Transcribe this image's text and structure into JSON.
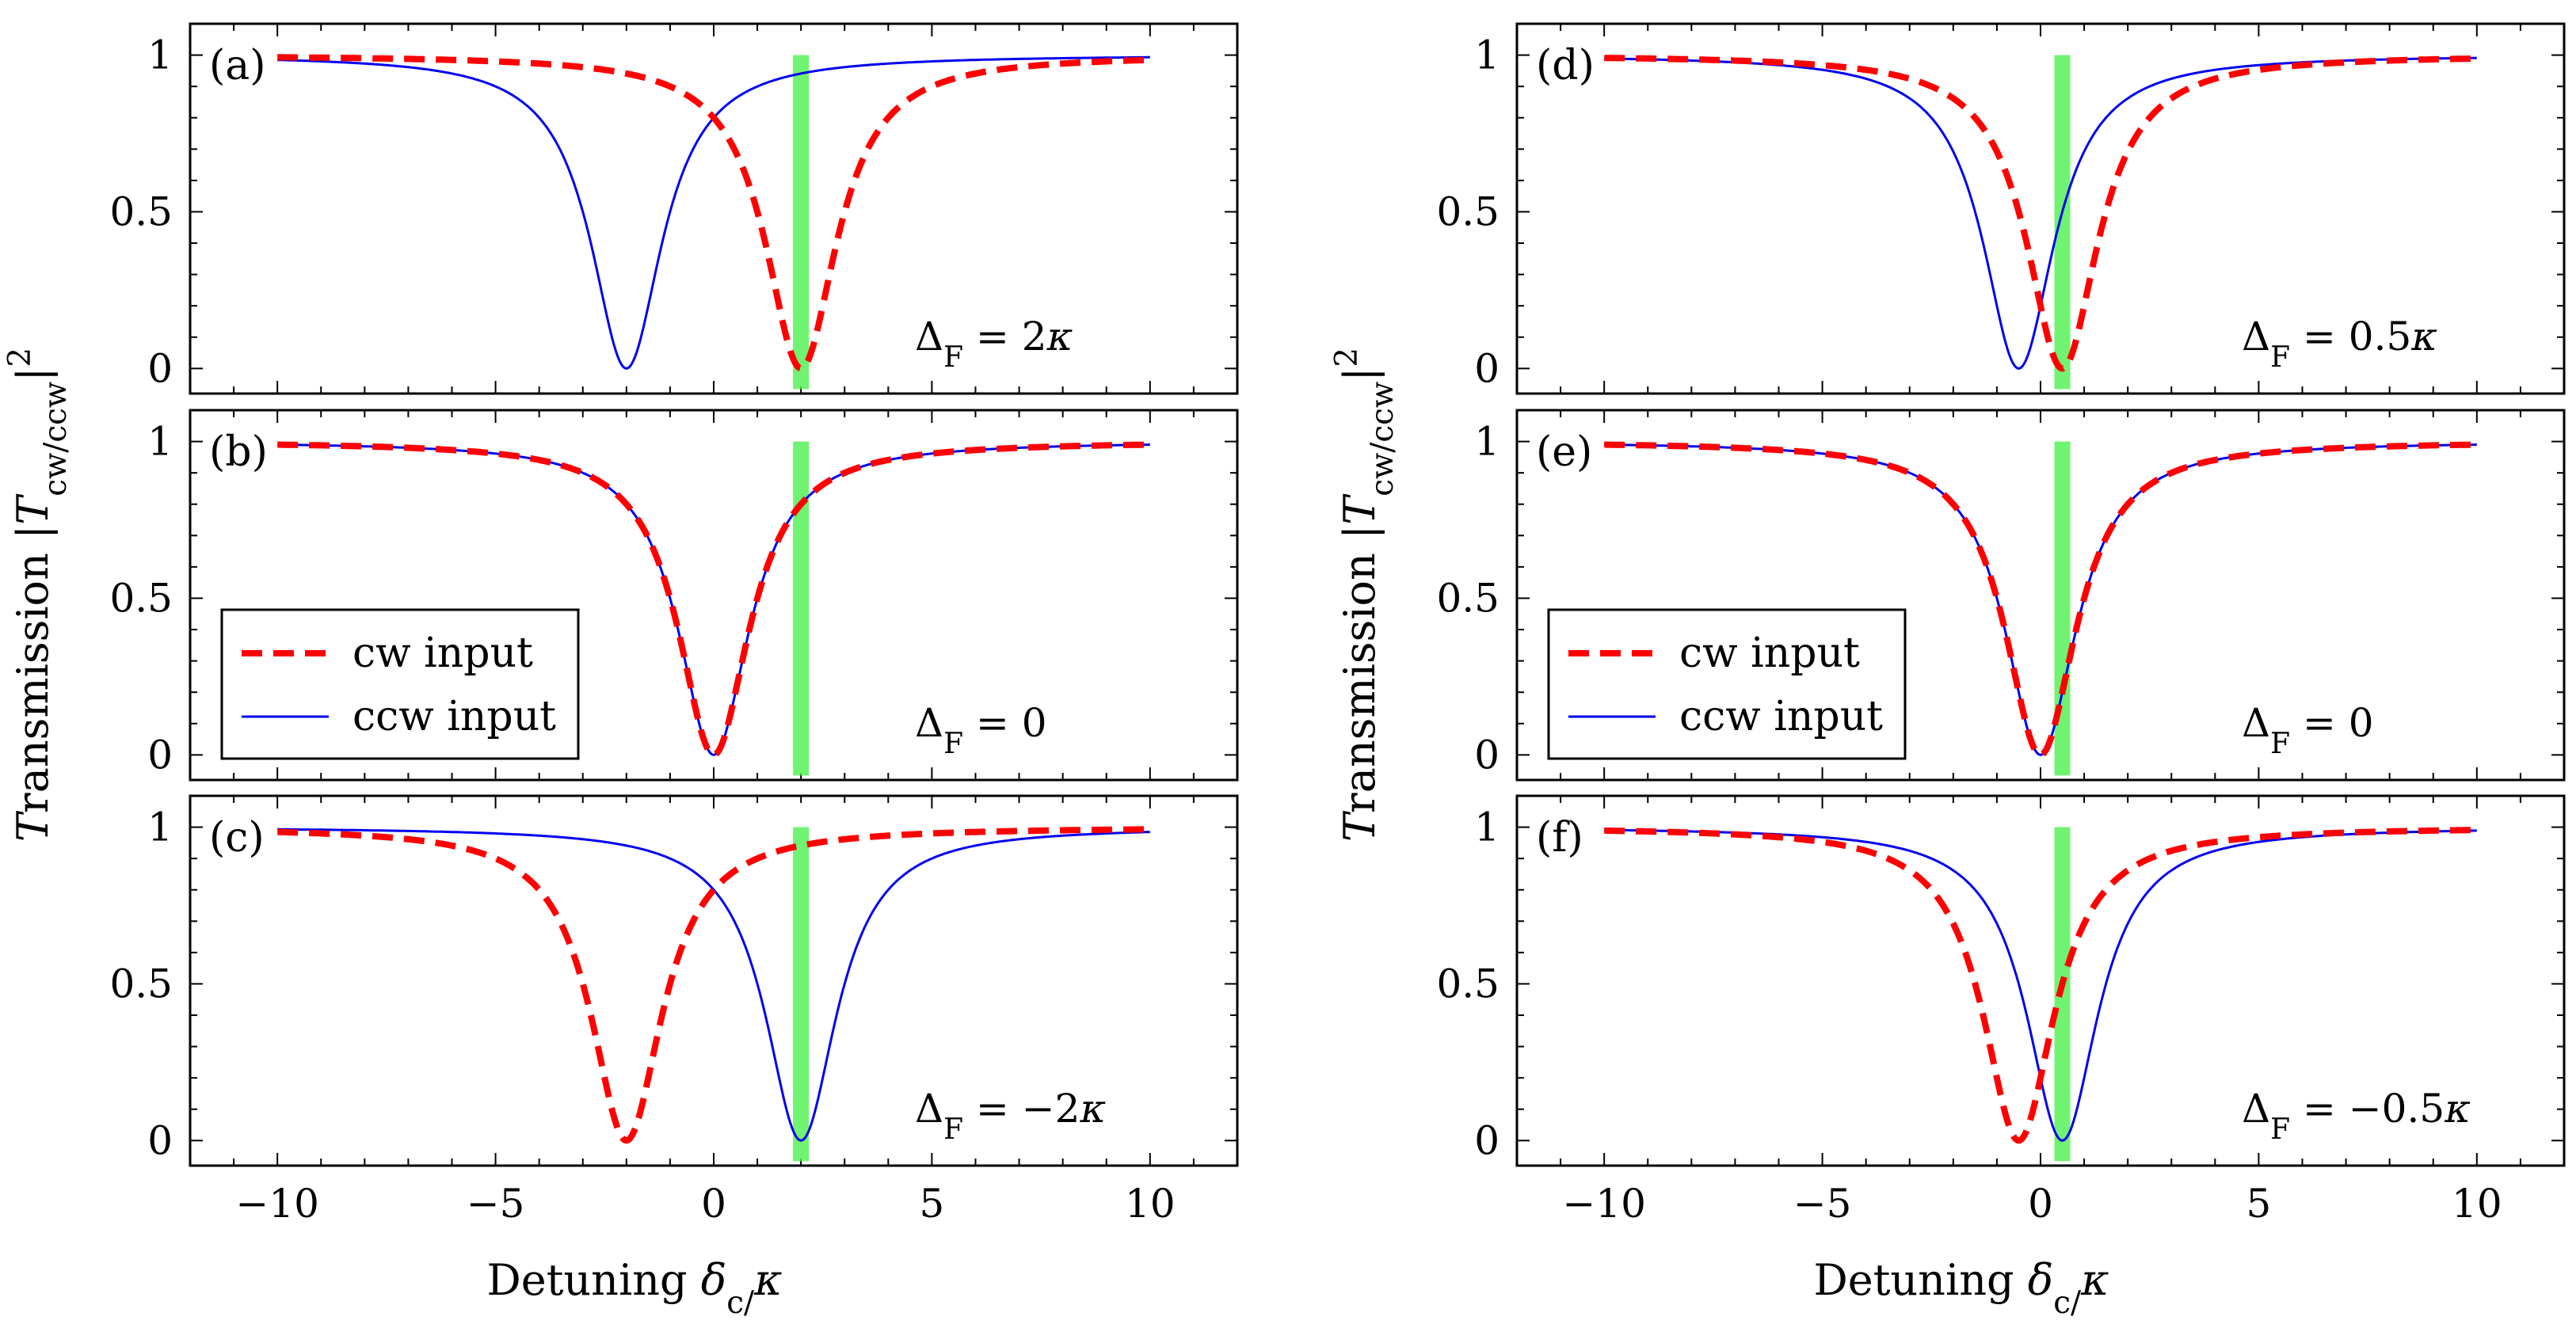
{
  "chart_data": {
    "type": "line",
    "title": "",
    "xlabel": "Detuning δ_c/κ",
    "ylabel": "Transmission |T_cw/ccw|^2",
    "xlim": [
      -12,
      12
    ],
    "ylim": [
      -0.08,
      1.1
    ],
    "x_ticks": [
      -10,
      -5,
      0,
      5,
      10
    ],
    "x_tick_labels": [
      "−10",
      "−5",
      "0",
      "5",
      "10"
    ],
    "y_ticks": [
      0,
      0.5,
      1
    ],
    "y_tick_labels": [
      "0",
      "0.5",
      "1"
    ],
    "x_range": [
      -10,
      10
    ],
    "legend": [
      {
        "name": "cw input",
        "style": "dashed",
        "color": "#ff0000"
      },
      {
        "name": "ccw input",
        "style": "solid",
        "color": "#0000ee"
      }
    ],
    "columns": [
      {
        "marker_x": 2,
        "panels": [
          {
            "label": "(a)",
            "delta_text": "Δ_F = 2κ",
            "delta_F": 2
          },
          {
            "label": "(b)",
            "delta_text": "Δ_F = 0",
            "delta_F": 0,
            "legend": true
          },
          {
            "label": "(c)",
            "delta_text": "Δ_F = −2κ",
            "delta_F": -2
          }
        ]
      },
      {
        "marker_x": 0.5,
        "panels": [
          {
            "label": "(d)",
            "delta_text": "Δ_F = 0.5κ",
            "delta_F": 0.5
          },
          {
            "label": "(e)",
            "delta_text": "Δ_F = 0",
            "delta_F": 0,
            "legend": true
          },
          {
            "label": "(f)",
            "delta_text": "Δ_F = −0.5κ",
            "delta_F": -0.5
          }
        ]
      }
    ],
    "series_model": {
      "cw": "T = x²/(x²+1), x = δ_c/κ − Δ_F",
      "ccw": "T = x²/(x²+1), x = δ_c/κ + Δ_F"
    }
  }
}
